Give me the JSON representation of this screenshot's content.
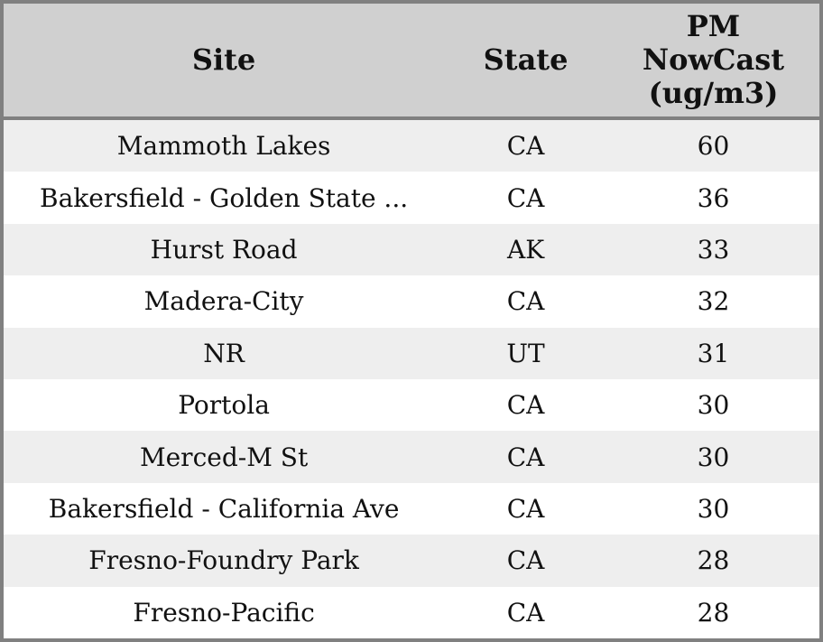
{
  "table": {
    "columns": [
      {
        "label": "Site"
      },
      {
        "label": "State"
      },
      {
        "label": "PM NowCast (ug/m3)"
      }
    ],
    "rows": [
      {
        "site": "Mammoth Lakes",
        "state": "CA",
        "value": "60"
      },
      {
        "site": "Bakersfield - Golden State ...",
        "state": "CA",
        "value": "36"
      },
      {
        "site": "Hurst Road",
        "state": "AK",
        "value": "33"
      },
      {
        "site": "Madera-City",
        "state": "CA",
        "value": "32"
      },
      {
        "site": "NR",
        "state": "UT",
        "value": "31"
      },
      {
        "site": "Portola",
        "state": "CA",
        "value": "30"
      },
      {
        "site": "Merced-M St",
        "state": "CA",
        "value": "30"
      },
      {
        "site": "Bakersfield - California Ave",
        "state": "CA",
        "value": "30"
      },
      {
        "site": "Fresno-Foundry Park",
        "state": "CA",
        "value": "28"
      },
      {
        "site": "Fresno-Pacific",
        "state": "CA",
        "value": "28"
      }
    ],
    "colors": {
      "border": "#808080",
      "header_bg": "#d0d0d0",
      "row_bg": "#ffffff",
      "row_alt_bg": "#eeeeee",
      "text": "#111111"
    }
  }
}
